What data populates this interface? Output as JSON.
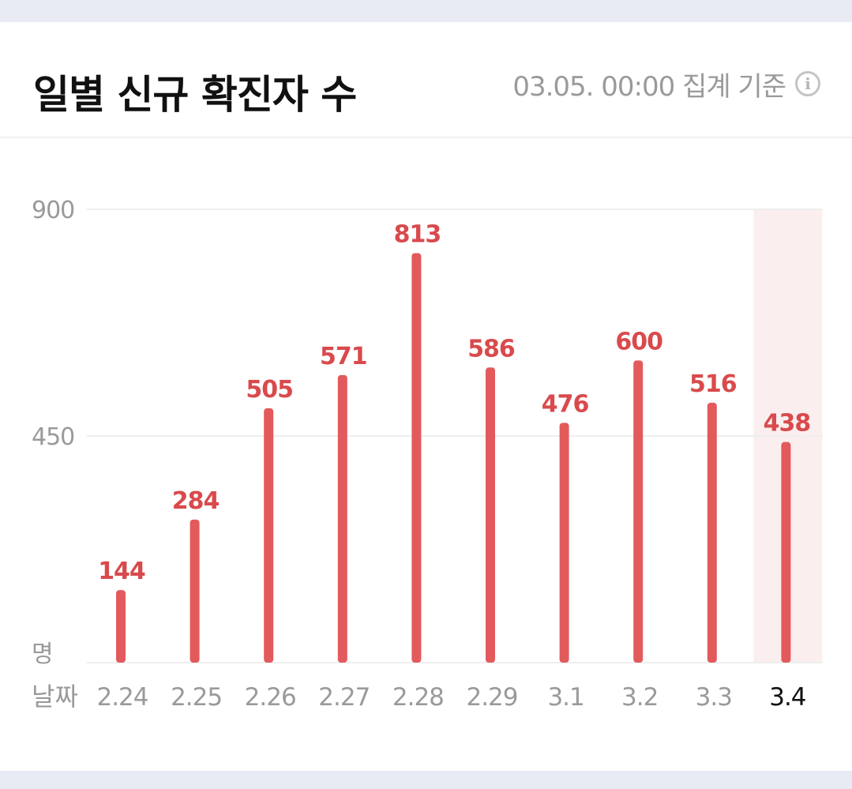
{
  "header": {
    "title": "일별 신규 확진자 수",
    "timestamp": "03.05. 00:00 집계 기준",
    "info_icon": "info-icon"
  },
  "chart_data": {
    "type": "bar",
    "categories": [
      "2.24",
      "2.25",
      "2.26",
      "2.27",
      "2.28",
      "2.29",
      "3.1",
      "3.2",
      "3.3",
      "3.4"
    ],
    "values": [
      144,
      284,
      505,
      571,
      813,
      586,
      476,
      600,
      516,
      438
    ],
    "title": "일별 신규 확진자 수",
    "y_unit_label": "명",
    "x_axis_label": "날짜",
    "y_ticks": [
      "900",
      "450"
    ],
    "ylim": [
      0,
      900
    ],
    "grid": true,
    "highlighted_category": "3.4",
    "colors": {
      "bar": "#e35a5c",
      "value_label": "#d94a4c",
      "highlight_band": "#fbeeee",
      "axis_text": "#9a9a9a",
      "highlight_text": "#111111",
      "grid": "#eeeeee"
    }
  }
}
